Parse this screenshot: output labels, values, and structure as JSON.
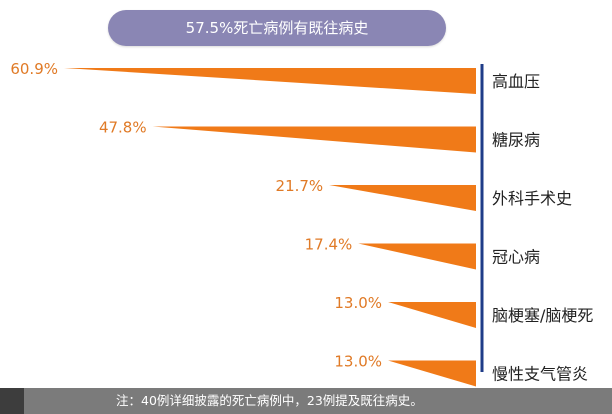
{
  "colors": {
    "bar": "#f07a18",
    "axis": "#1f3c88",
    "title_bg": "#8a86b4",
    "value_text": "#e07a26",
    "label_text": "#222222"
  },
  "chart_data": {
    "type": "bar",
    "orientation": "horizontal",
    "title": "57.5%死亡病例有既往病史",
    "categories": [
      "高血压",
      "糖尿病",
      "外科手术史",
      "冠心病",
      "脑梗塞/脑梗死",
      "慢性支气管炎"
    ],
    "values": [
      60.9,
      47.8,
      21.7,
      17.4,
      13.0,
      13.0
    ],
    "value_labels": [
      "60.9%",
      "47.8%",
      "21.7%",
      "17.4%",
      "13.0%",
      "13.0%"
    ],
    "xlim": [
      0,
      60.9
    ],
    "xlabel": "",
    "ylabel": "",
    "grid": false,
    "legend": "none"
  },
  "footnote": "注：40例详细披露的死亡病例中，23例提及既往病史。"
}
